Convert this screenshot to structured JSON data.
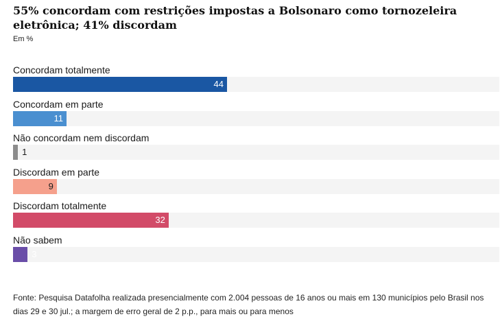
{
  "chart_data": {
    "type": "bar",
    "orientation": "horizontal",
    "title": "55% concordam com restrições impostas a Bolsonaro como tornozeleira eletrônica; 41% discordam",
    "unit": "Em %",
    "categories": [
      "Concordam totalmente",
      "Concordam em parte",
      "Não concordam nem discordam",
      "Discordam em parte",
      "Discordam totalmente",
      "Não sabem"
    ],
    "values": [
      44,
      11,
      1,
      9,
      32,
      3
    ],
    "colors": [
      "#1a57a3",
      "#4a8fd0",
      "#8c8c8c",
      "#f5a08c",
      "#d24b68",
      "#6a4ea8"
    ],
    "value_label_colors": [
      "#ffffff",
      "#ffffff",
      "#1a1a1a",
      "#1a1a1a",
      "#ffffff",
      "#ffffff"
    ],
    "xlim": [
      0,
      100
    ],
    "grid": false,
    "legend": "none",
    "source": "Fonte: Pesquisa Datafolha realizada presencialmente com 2.004 pessoas de 16 anos ou mais em 130 municípios pelo Brasil nos dias 29 e 30 jul.; a margem de erro geral de 2 p.p., para mais ou para menos"
  }
}
